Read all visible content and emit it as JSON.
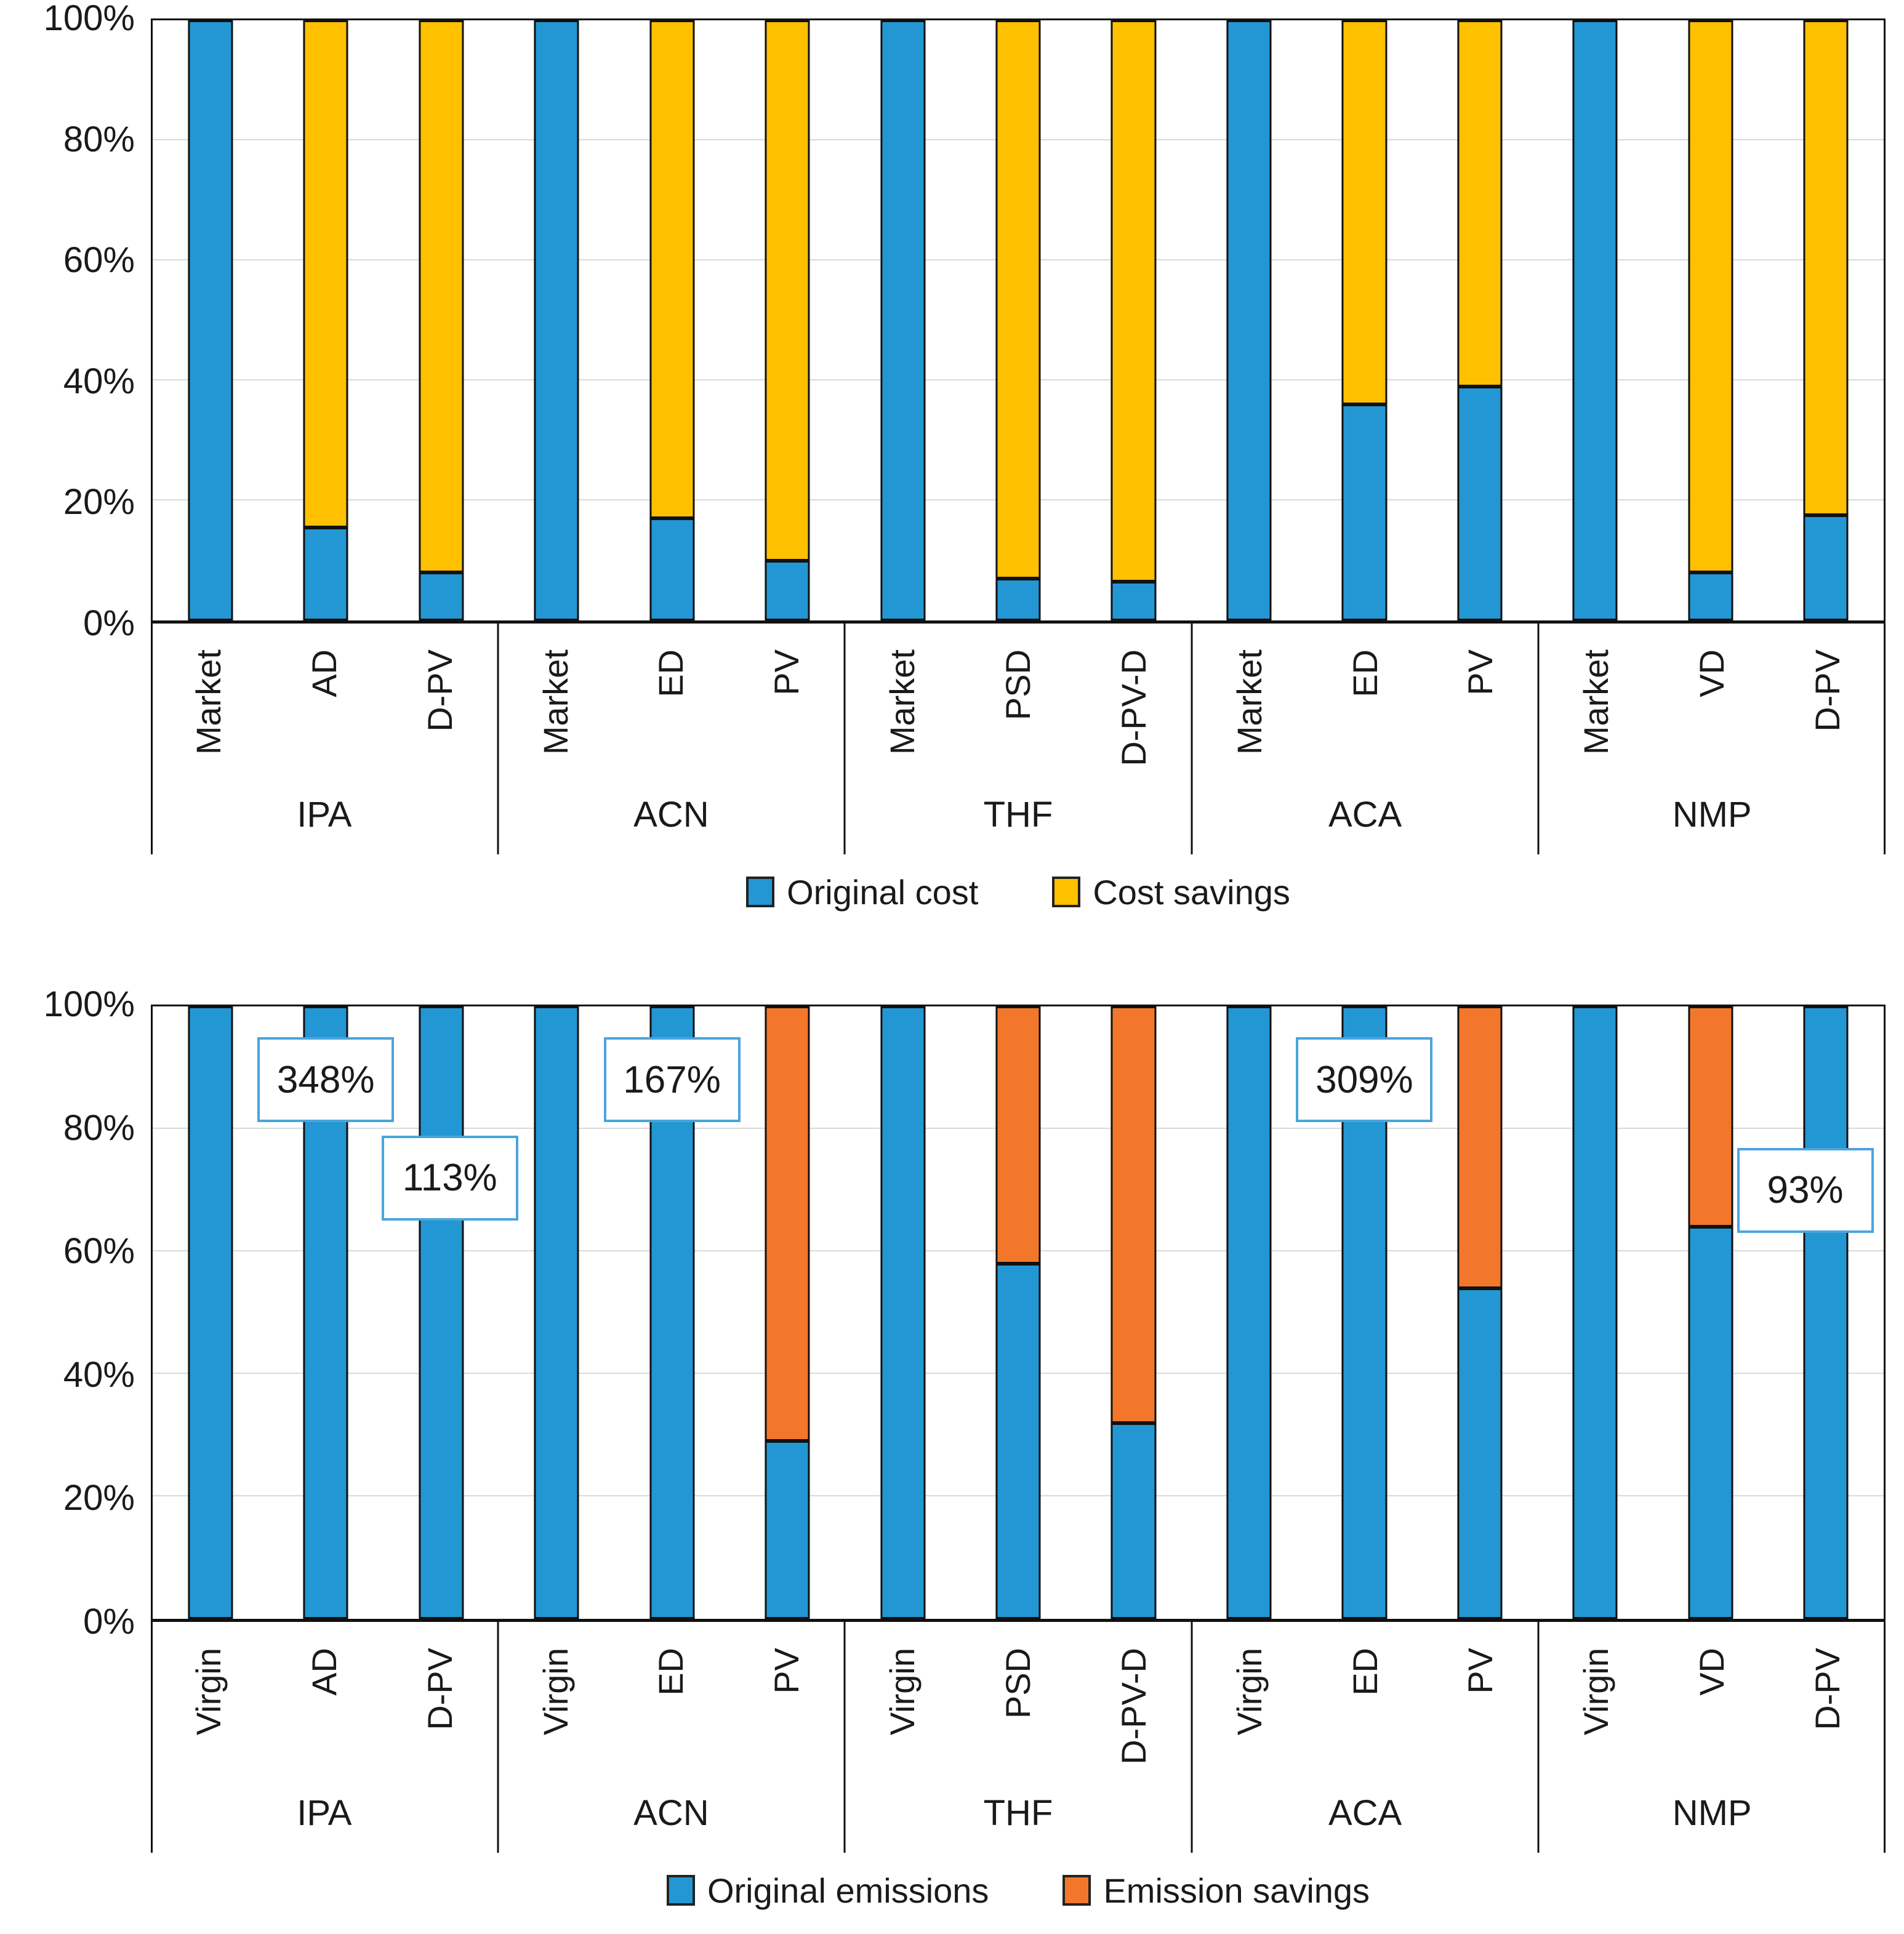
{
  "chart_data": [
    {
      "type": "bar",
      "stacked": true,
      "title": "",
      "group_labels": [
        "IPA",
        "ACN",
        "THF",
        "ACA",
        "NMP"
      ],
      "categories": [
        "Market",
        "AD",
        "D-PV",
        "Market",
        "ED",
        "PV",
        "Market",
        "PSD",
        "D-PV-D",
        "Market",
        "ED",
        "PV",
        "Market",
        "VD",
        "D-PV"
      ],
      "series": [
        {
          "name": "Original cost",
          "color": "#2397d4",
          "values": [
            100,
            15.5,
            8,
            100,
            17,
            10,
            100,
            7,
            6.5,
            100,
            36,
            39,
            100,
            8,
            17.5
          ]
        },
        {
          "name": "Cost savings",
          "color": "#ffc000",
          "values": [
            0,
            84.5,
            92,
            0,
            83,
            90,
            0,
            93,
            93.5,
            0,
            64,
            61,
            0,
            92,
            82.5
          ]
        }
      ],
      "ylim": [
        0,
        100
      ],
      "y_ticks": [
        "100%",
        "80%",
        "60%",
        "40%",
        "20%",
        "0%"
      ],
      "grid": true,
      "legend_position": "bottom",
      "callouts": []
    },
    {
      "type": "bar",
      "stacked": true,
      "title": "",
      "group_labels": [
        "IPA",
        "ACN",
        "THF",
        "ACA",
        "NMP"
      ],
      "categories": [
        "Virgin",
        "AD",
        "D-PV",
        "Virgin",
        "ED",
        "PV",
        "Virgin",
        "PSD",
        "D-PV-D",
        "Virgin",
        "ED",
        "PV",
        "Virgin",
        "VD",
        "D-PV"
      ],
      "series": [
        {
          "name": "Original emissions",
          "color": "#2397d4",
          "values": [
            100,
            100,
            100,
            100,
            100,
            29,
            100,
            58,
            32,
            100,
            100,
            54,
            100,
            64,
            100
          ]
        },
        {
          "name": "Emission savings",
          "color": "#f2772b",
          "values": [
            0,
            0,
            0,
            0,
            0,
            71,
            0,
            42,
            68,
            0,
            0,
            46,
            0,
            36,
            0
          ]
        }
      ],
      "ylim": [
        0,
        100
      ],
      "y_ticks": [
        "100%",
        "80%",
        "60%",
        "40%",
        "20%",
        "0%"
      ],
      "grid": true,
      "legend_position": "bottom",
      "callouts": [
        {
          "text": "348%",
          "category_index": 1,
          "center_value_pct": 88,
          "x_offset_pct": 0
        },
        {
          "text": "113%",
          "category_index": 2,
          "center_value_pct": 72,
          "x_offset_pct": 0.5
        },
        {
          "text": "167%",
          "category_index": 4,
          "center_value_pct": 88,
          "x_offset_pct": 0
        },
        {
          "text": "309%",
          "category_index": 10,
          "center_value_pct": 88,
          "x_offset_pct": 0
        },
        {
          "text": "93%",
          "category_index": 14,
          "center_value_pct": 70,
          "x_offset_pct": -1.2
        }
      ]
    }
  ]
}
